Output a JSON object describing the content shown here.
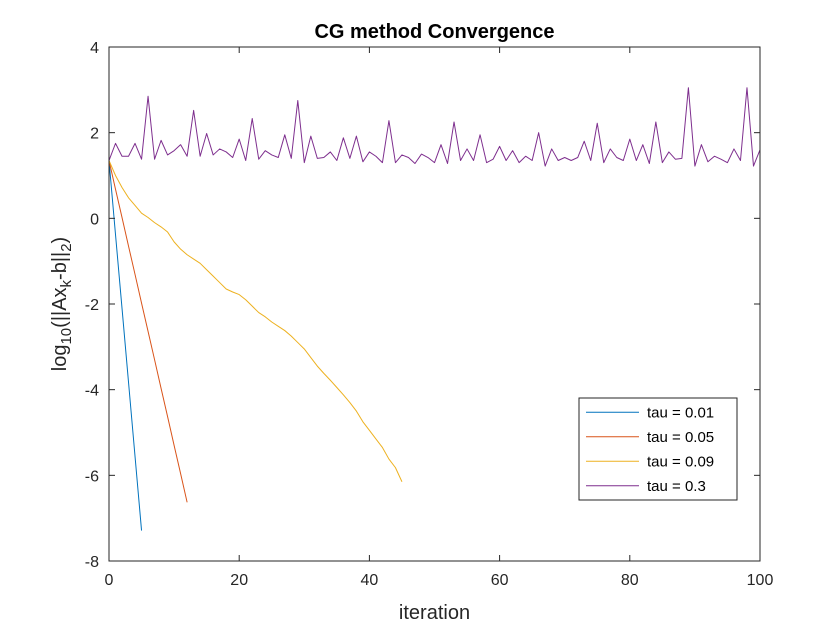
{
  "chart_data": {
    "type": "line",
    "title": "CG method Convergence",
    "xlabel": "iteration",
    "ylabel": {
      "parts": [
        {
          "t": "log",
          "s": "base"
        },
        {
          "t": "10",
          "s": "sub"
        },
        {
          "t": "(||Ax",
          "s": "base"
        },
        {
          "t": "k",
          "s": "sub"
        },
        {
          "t": "-b||",
          "s": "base"
        },
        {
          "t": "2",
          "s": "sub"
        },
        {
          "t": ")",
          "s": "base"
        }
      ]
    },
    "xlim": [
      0,
      100
    ],
    "ylim": [
      -8,
      4
    ],
    "xticks": [
      0,
      20,
      40,
      60,
      80,
      100
    ],
    "yticks": [
      -8,
      -6,
      -4,
      -2,
      0,
      2,
      4
    ],
    "grid": false,
    "legend_position": "lower-right",
    "series": [
      {
        "name": "tau = 0.01",
        "color": "#0072BD",
        "x": [
          0,
          1,
          2,
          3,
          4,
          5
        ],
        "y": [
          1.35,
          -0.38,
          -2.1,
          -3.83,
          -5.56,
          -7.29
        ]
      },
      {
        "name": "tau = 0.05",
        "color": "#D95319",
        "x": [
          0,
          1,
          2,
          3,
          4,
          5,
          6,
          7,
          8,
          9,
          10,
          11,
          12
        ],
        "y": [
          1.35,
          0.68,
          0.02,
          -0.65,
          -1.31,
          -1.98,
          -2.64,
          -3.3,
          -3.97,
          -4.63,
          -5.3,
          -5.96,
          -6.63
        ]
      },
      {
        "name": "tau = 0.09",
        "color": "#EDB120",
        "x": [
          0,
          1,
          2,
          3,
          4,
          5,
          6,
          7,
          8,
          9,
          10,
          11,
          12,
          13,
          14,
          15,
          16,
          17,
          18,
          19,
          20,
          21,
          22,
          23,
          24,
          25,
          26,
          27,
          28,
          29,
          30,
          31,
          32,
          33,
          34,
          35,
          36,
          37,
          38,
          39,
          40,
          41,
          42,
          43,
          44,
          45
        ],
        "y": [
          1.35,
          1.0,
          0.72,
          0.48,
          0.3,
          0.12,
          0.02,
          -0.1,
          -0.2,
          -0.32,
          -0.55,
          -0.72,
          -0.85,
          -0.95,
          -1.05,
          -1.2,
          -1.35,
          -1.5,
          -1.65,
          -1.72,
          -1.78,
          -1.9,
          -2.05,
          -2.2,
          -2.3,
          -2.42,
          -2.52,
          -2.62,
          -2.75,
          -2.9,
          -3.05,
          -3.25,
          -3.45,
          -3.62,
          -3.78,
          -3.95,
          -4.12,
          -4.3,
          -4.5,
          -4.75,
          -4.95,
          -5.15,
          -5.35,
          -5.62,
          -5.82,
          -6.15
        ]
      },
      {
        "name": "tau = 0.3",
        "color": "#7E2F8E",
        "x": [
          0,
          1,
          2,
          3,
          4,
          5,
          6,
          7,
          8,
          9,
          10,
          11,
          12,
          13,
          14,
          15,
          16,
          17,
          18,
          19,
          20,
          21,
          22,
          23,
          24,
          25,
          26,
          27,
          28,
          29,
          30,
          31,
          32,
          33,
          34,
          35,
          36,
          37,
          38,
          39,
          40,
          41,
          42,
          43,
          44,
          45,
          46,
          47,
          48,
          49,
          50,
          51,
          52,
          53,
          54,
          55,
          56,
          57,
          58,
          59,
          60,
          61,
          62,
          63,
          64,
          65,
          66,
          67,
          68,
          69,
          70,
          71,
          72,
          73,
          74,
          75,
          76,
          77,
          78,
          79,
          80,
          81,
          82,
          83,
          84,
          85,
          86,
          87,
          88,
          89,
          90,
          91,
          92,
          93,
          94,
          95,
          96,
          97,
          98,
          99,
          100
        ],
        "y": [
          1.35,
          1.75,
          1.45,
          1.45,
          1.75,
          1.38,
          2.85,
          1.38,
          1.82,
          1.48,
          1.58,
          1.72,
          1.45,
          2.52,
          1.45,
          1.98,
          1.48,
          1.62,
          1.55,
          1.42,
          1.85,
          1.35,
          2.33,
          1.38,
          1.58,
          1.48,
          1.42,
          1.95,
          1.4,
          2.75,
          1.3,
          1.92,
          1.4,
          1.42,
          1.55,
          1.35,
          1.88,
          1.4,
          1.92,
          1.32,
          1.55,
          1.45,
          1.3,
          2.28,
          1.3,
          1.48,
          1.42,
          1.28,
          1.5,
          1.42,
          1.3,
          1.72,
          1.28,
          2.25,
          1.35,
          1.62,
          1.35,
          1.95,
          1.3,
          1.38,
          1.68,
          1.35,
          1.58,
          1.3,
          1.45,
          1.35,
          2.0,
          1.22,
          1.62,
          1.35,
          1.42,
          1.35,
          1.42,
          1.8,
          1.35,
          2.22,
          1.3,
          1.62,
          1.42,
          1.35,
          1.85,
          1.35,
          1.72,
          1.28,
          2.25,
          1.3,
          1.55,
          1.38,
          1.4,
          3.05,
          1.22,
          1.72,
          1.32,
          1.45,
          1.38,
          1.3,
          1.62,
          1.35,
          3.05,
          1.22,
          1.6
        ]
      }
    ]
  }
}
